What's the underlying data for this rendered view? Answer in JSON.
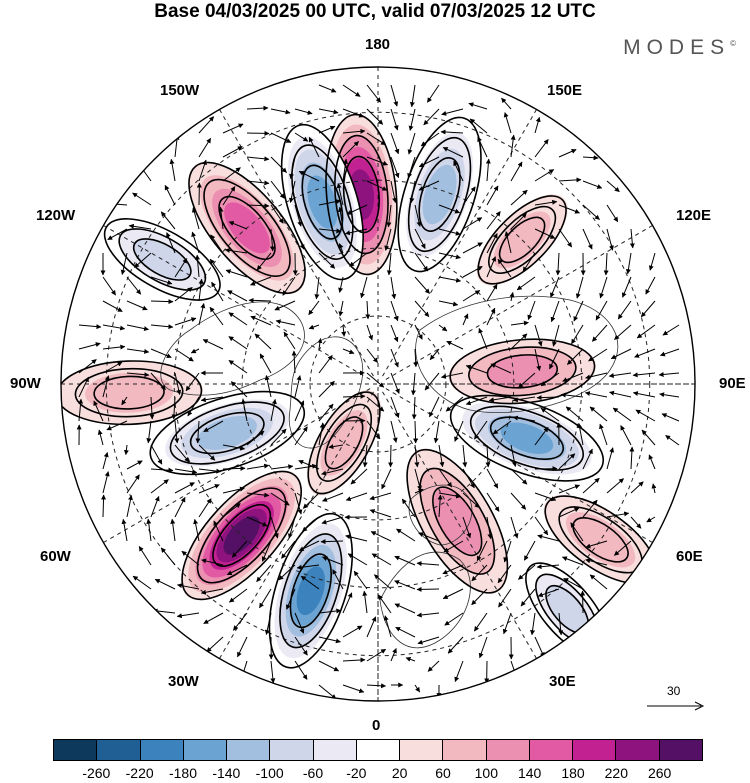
{
  "title": "Base 04/03/2025 00 UTC, valid 07/03/2025 12 UTC",
  "brand": "MODES",
  "brand_mark": "©",
  "longitude_labels": {
    "n180": "180",
    "w150": "150W",
    "e150": "150E",
    "w120": "120W",
    "e120": "120E",
    "w90": "90W",
    "e90": "90E",
    "w60": "60W",
    "e60": "60E",
    "w30": "30W",
    "e30": "30E",
    "s0": "0"
  },
  "reference_vector": {
    "label": "30",
    "icon": "arrow-right-icon"
  },
  "colorbar": {
    "colors": [
      "#0d3a5c",
      "#1f5f94",
      "#3c82bd",
      "#6ba3d2",
      "#a3bfe0",
      "#cfd6ea",
      "#ebeaf4",
      "#ffffff",
      "#f9dede",
      "#f2b9c1",
      "#ec90b1",
      "#e15aa3",
      "#c22191",
      "#8e137e",
      "#531064"
    ],
    "ticks": [
      "-260",
      "-220",
      "-180",
      "-140",
      "-100",
      "-60",
      "-20",
      "20",
      "60",
      "100",
      "140",
      "180",
      "220",
      "260"
    ]
  },
  "anomaly_centers": [
    {
      "lon": -175,
      "lat": 48,
      "value": 200,
      "spread": 0.9
    },
    {
      "lon": -163,
      "lat": 48,
      "value": -160,
      "spread": 0.9
    },
    {
      "lon": 162,
      "lat": 46,
      "value": -150,
      "spread": 0.9
    },
    {
      "lon": -140,
      "lat": 45,
      "value": 150,
      "spread": 0.9
    },
    {
      "lon": -120,
      "lat": 35,
      "value": -100,
      "spread": 0.7
    },
    {
      "lon": -88,
      "lat": 35,
      "value": 50,
      "spread": 0.8
    },
    {
      "lon": -72,
      "lat": 55,
      "value": -130,
      "spread": 0.9
    },
    {
      "lon": -42,
      "lat": 45,
      "value": 260,
      "spread": 0.9
    },
    {
      "lon": -18,
      "lat": 42,
      "value": -200,
      "spread": 0.9
    },
    {
      "lon": 30,
      "lat": 55,
      "value": 110,
      "spread": 0.9
    },
    {
      "lon": 70,
      "lat": 55,
      "value": -190,
      "spread": 0.9
    },
    {
      "lon": 95,
      "lat": 58,
      "value": 100,
      "spread": 0.8
    },
    {
      "lon": 135,
      "lat": 45,
      "value": 60,
      "spread": 0.6
    },
    {
      "lon": 40,
      "lat": 25,
      "value": -100,
      "spread": 0.6
    },
    {
      "lon": 55,
      "lat": 30,
      "value": 50,
      "spread": 0.7
    },
    {
      "lon": -30,
      "lat": 75,
      "value": 60,
      "spread": 0.6
    }
  ]
}
